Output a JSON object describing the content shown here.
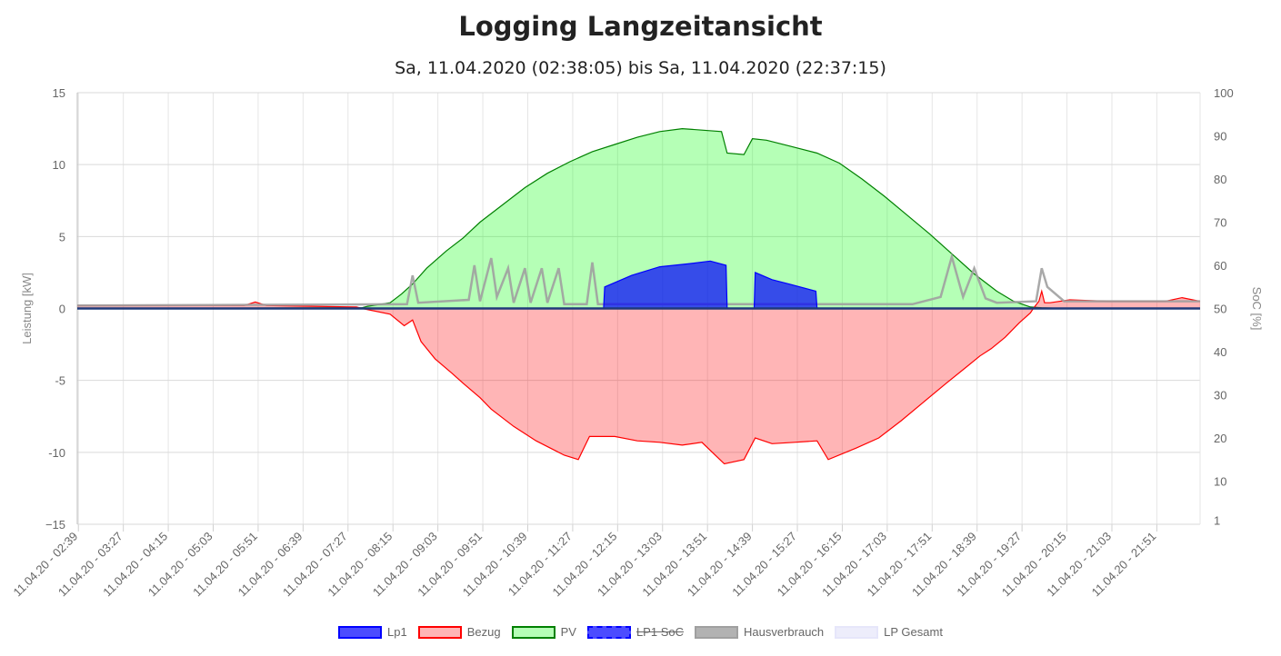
{
  "page": {
    "title": "Logging Langzeitansicht",
    "subtitle": "Sa, 11.04.2020 (02:38:05) bis Sa, 11.04.2020 (22:37:15)"
  },
  "chart_data": {
    "type": "line",
    "x_labels": [
      "11.04.20 - 02:39",
      "11.04.20 - 03:27",
      "11.04.20 - 04:15",
      "11.04.20 - 05:03",
      "11.04.20 - 05:51",
      "11.04.20 - 06:39",
      "11.04.20 - 07:27",
      "11.04.20 - 08:15",
      "11.04.20 - 09:03",
      "11.04.20 - 09:51",
      "11.04.20 - 10:39",
      "11.04.20 - 11:27",
      "11.04.20 - 12:15",
      "11.04.20 - 13:03",
      "11.04.20 - 13:51",
      "11.04.20 - 14:39",
      "11.04.20 - 15:27",
      "11.04.20 - 16:15",
      "11.04.20 - 17:03",
      "11.04.20 - 17:51",
      "11.04.20 - 18:39",
      "11.04.20 - 19:27",
      "11.04.20 - 20:15",
      "11.04.20 - 21:03",
      "11.04.20 - 21:51"
    ],
    "x_hours": [
      2.65,
      3.45,
      4.25,
      5.05,
      5.85,
      6.65,
      7.45,
      8.25,
      9.05,
      9.85,
      10.65,
      11.45,
      12.25,
      13.05,
      13.85,
      14.65,
      15.45,
      16.25,
      17.05,
      17.85,
      18.65,
      19.45,
      20.25,
      21.05,
      21.85
    ],
    "x_range": [
      2.63,
      22.62
    ],
    "y_left": {
      "label": "Leistung [kW]",
      "range": [
        -15,
        15
      ],
      "ticks": [
        15,
        10,
        5,
        0,
        -5,
        -10,
        -15
      ],
      "tick_labels": [
        "15",
        "10",
        "5",
        "0",
        "-5",
        "-10",
        "−15"
      ]
    },
    "y_right": {
      "label": "SoC [%]",
      "range": [
        0,
        100
      ],
      "ticks": [
        100,
        90,
        80,
        70,
        60,
        50,
        40,
        30,
        20,
        10,
        1
      ],
      "tick_labels": [
        "100",
        "90",
        "80",
        "70",
        "60",
        "50",
        "40",
        "30",
        "20",
        "10",
        "1"
      ]
    },
    "series": [
      {
        "name": "Lp1",
        "color": "#0000ff",
        "fill": "rgba(0,0,255,0.7)",
        "hidden": false,
        "points": [
          [
            12.0,
            0
          ],
          [
            12.02,
            1.5
          ],
          [
            12.5,
            2.3
          ],
          [
            13.0,
            2.9
          ],
          [
            13.5,
            3.1
          ],
          [
            13.9,
            3.3
          ],
          [
            14.18,
            3.0
          ],
          [
            14.2,
            0
          ],
          [
            14.68,
            0
          ],
          [
            14.7,
            2.5
          ],
          [
            15.0,
            2.0
          ],
          [
            15.3,
            1.7
          ],
          [
            15.78,
            1.2
          ],
          [
            15.8,
            0
          ]
        ]
      },
      {
        "name": "Bezug",
        "color": "#ff0000",
        "fill": "rgba(255,10,13,0.3)",
        "hidden": false,
        "points": [
          [
            2.63,
            0.2
          ],
          [
            5.6,
            0.2
          ],
          [
            5.8,
            0.45
          ],
          [
            6.0,
            0.2
          ],
          [
            7.6,
            0.1
          ],
          [
            7.7,
            0
          ],
          [
            8.2,
            -0.4
          ],
          [
            8.45,
            -1.2
          ],
          [
            8.6,
            -0.8
          ],
          [
            8.75,
            -2.3
          ],
          [
            9.0,
            -3.5
          ],
          [
            9.3,
            -4.5
          ],
          [
            9.5,
            -5.2
          ],
          [
            9.8,
            -6.2
          ],
          [
            10.0,
            -7.0
          ],
          [
            10.4,
            -8.2
          ],
          [
            10.8,
            -9.2
          ],
          [
            11.1,
            -9.8
          ],
          [
            11.3,
            -10.2
          ],
          [
            11.55,
            -10.5
          ],
          [
            11.75,
            -8.9
          ],
          [
            12.2,
            -8.9
          ],
          [
            12.6,
            -9.2
          ],
          [
            13.0,
            -9.3
          ],
          [
            13.4,
            -9.5
          ],
          [
            13.75,
            -9.3
          ],
          [
            14.15,
            -10.8
          ],
          [
            14.5,
            -10.5
          ],
          [
            14.7,
            -9.0
          ],
          [
            15.0,
            -9.4
          ],
          [
            15.4,
            -9.3
          ],
          [
            15.8,
            -9.2
          ],
          [
            16.0,
            -10.5
          ],
          [
            16.5,
            -9.7
          ],
          [
            16.9,
            -9.0
          ],
          [
            17.3,
            -7.8
          ],
          [
            17.7,
            -6.5
          ],
          [
            18.1,
            -5.2
          ],
          [
            18.45,
            -4.1
          ],
          [
            18.7,
            -3.3
          ],
          [
            18.9,
            -2.8
          ],
          [
            19.15,
            -2.0
          ],
          [
            19.4,
            -1.0
          ],
          [
            19.6,
            -0.3
          ],
          [
            19.65,
            0
          ],
          [
            19.75,
            0.5
          ],
          [
            19.8,
            1.2
          ],
          [
            19.85,
            0.4
          ],
          [
            19.95,
            0.4
          ],
          [
            20.3,
            0.6
          ],
          [
            21.0,
            0.5
          ],
          [
            22.0,
            0.5
          ],
          [
            22.3,
            0.75
          ],
          [
            22.62,
            0.5
          ]
        ]
      },
      {
        "name": "PV",
        "color": "#008000",
        "fill": "rgba(10,255,13,0.3)",
        "hidden": false,
        "points": [
          [
            2.63,
            0
          ],
          [
            7.7,
            0.05
          ],
          [
            7.8,
            0.15
          ],
          [
            8.2,
            0.4
          ],
          [
            8.4,
            1.0
          ],
          [
            8.6,
            1.7
          ],
          [
            8.85,
            2.8
          ],
          [
            9.2,
            4.0
          ],
          [
            9.5,
            4.9
          ],
          [
            9.8,
            6.0
          ],
          [
            10.2,
            7.2
          ],
          [
            10.6,
            8.4
          ],
          [
            11.0,
            9.4
          ],
          [
            11.4,
            10.2
          ],
          [
            11.8,
            10.9
          ],
          [
            12.2,
            11.4
          ],
          [
            12.6,
            11.9
          ],
          [
            13.0,
            12.3
          ],
          [
            13.4,
            12.5
          ],
          [
            13.75,
            12.4
          ],
          [
            14.1,
            12.3
          ],
          [
            14.2,
            10.8
          ],
          [
            14.5,
            10.7
          ],
          [
            14.65,
            11.8
          ],
          [
            14.9,
            11.7
          ],
          [
            15.3,
            11.3
          ],
          [
            15.8,
            10.8
          ],
          [
            16.2,
            10.1
          ],
          [
            16.6,
            9.0
          ],
          [
            17.0,
            7.8
          ],
          [
            17.4,
            6.5
          ],
          [
            17.8,
            5.2
          ],
          [
            18.2,
            3.8
          ],
          [
            18.6,
            2.4
          ],
          [
            19.0,
            1.2
          ],
          [
            19.3,
            0.5
          ],
          [
            19.6,
            0.1
          ],
          [
            19.8,
            0.05
          ],
          [
            20.2,
            0
          ],
          [
            22.62,
            0
          ]
        ]
      },
      {
        "name": "LP1 SoC",
        "color": "#0000ff",
        "fill": "rgba(0,0,255,0.7)",
        "hidden": true,
        "points": []
      },
      {
        "name": "Hausverbrauch",
        "color": "#a0a0a0",
        "fill": "rgba(0,0,0,0.3)",
        "hidden": false,
        "points": [
          [
            2.63,
            0.2
          ],
          [
            8.5,
            0.3
          ],
          [
            8.6,
            2.3
          ],
          [
            8.7,
            0.4
          ],
          [
            9.6,
            0.6
          ],
          [
            9.7,
            3.0
          ],
          [
            9.8,
            0.5
          ],
          [
            10.0,
            3.5
          ],
          [
            10.1,
            0.8
          ],
          [
            10.3,
            2.8
          ],
          [
            10.4,
            0.4
          ],
          [
            10.6,
            2.8
          ],
          [
            10.7,
            0.4
          ],
          [
            10.9,
            2.8
          ],
          [
            11.0,
            0.4
          ],
          [
            11.2,
            2.8
          ],
          [
            11.3,
            0.3
          ],
          [
            11.7,
            0.3
          ],
          [
            11.8,
            3.2
          ],
          [
            11.9,
            0.3
          ],
          [
            13.0,
            0.3
          ],
          [
            14.0,
            0.3
          ],
          [
            15.0,
            0.3
          ],
          [
            16.5,
            0.3
          ],
          [
            17.0,
            0.3
          ],
          [
            17.5,
            0.3
          ],
          [
            18.0,
            0.8
          ],
          [
            18.2,
            3.6
          ],
          [
            18.4,
            0.8
          ],
          [
            18.6,
            2.8
          ],
          [
            18.8,
            0.7
          ],
          [
            19.0,
            0.4
          ],
          [
            19.7,
            0.5
          ],
          [
            19.8,
            2.8
          ],
          [
            19.9,
            1.5
          ],
          [
            20.2,
            0.5
          ],
          [
            22.62,
            0.5
          ]
        ]
      },
      {
        "name": "LP Gesamt",
        "color": "#e6e6fa",
        "fill": "rgba(230,230,250,0.7)",
        "hidden": false,
        "points": []
      }
    ]
  }
}
